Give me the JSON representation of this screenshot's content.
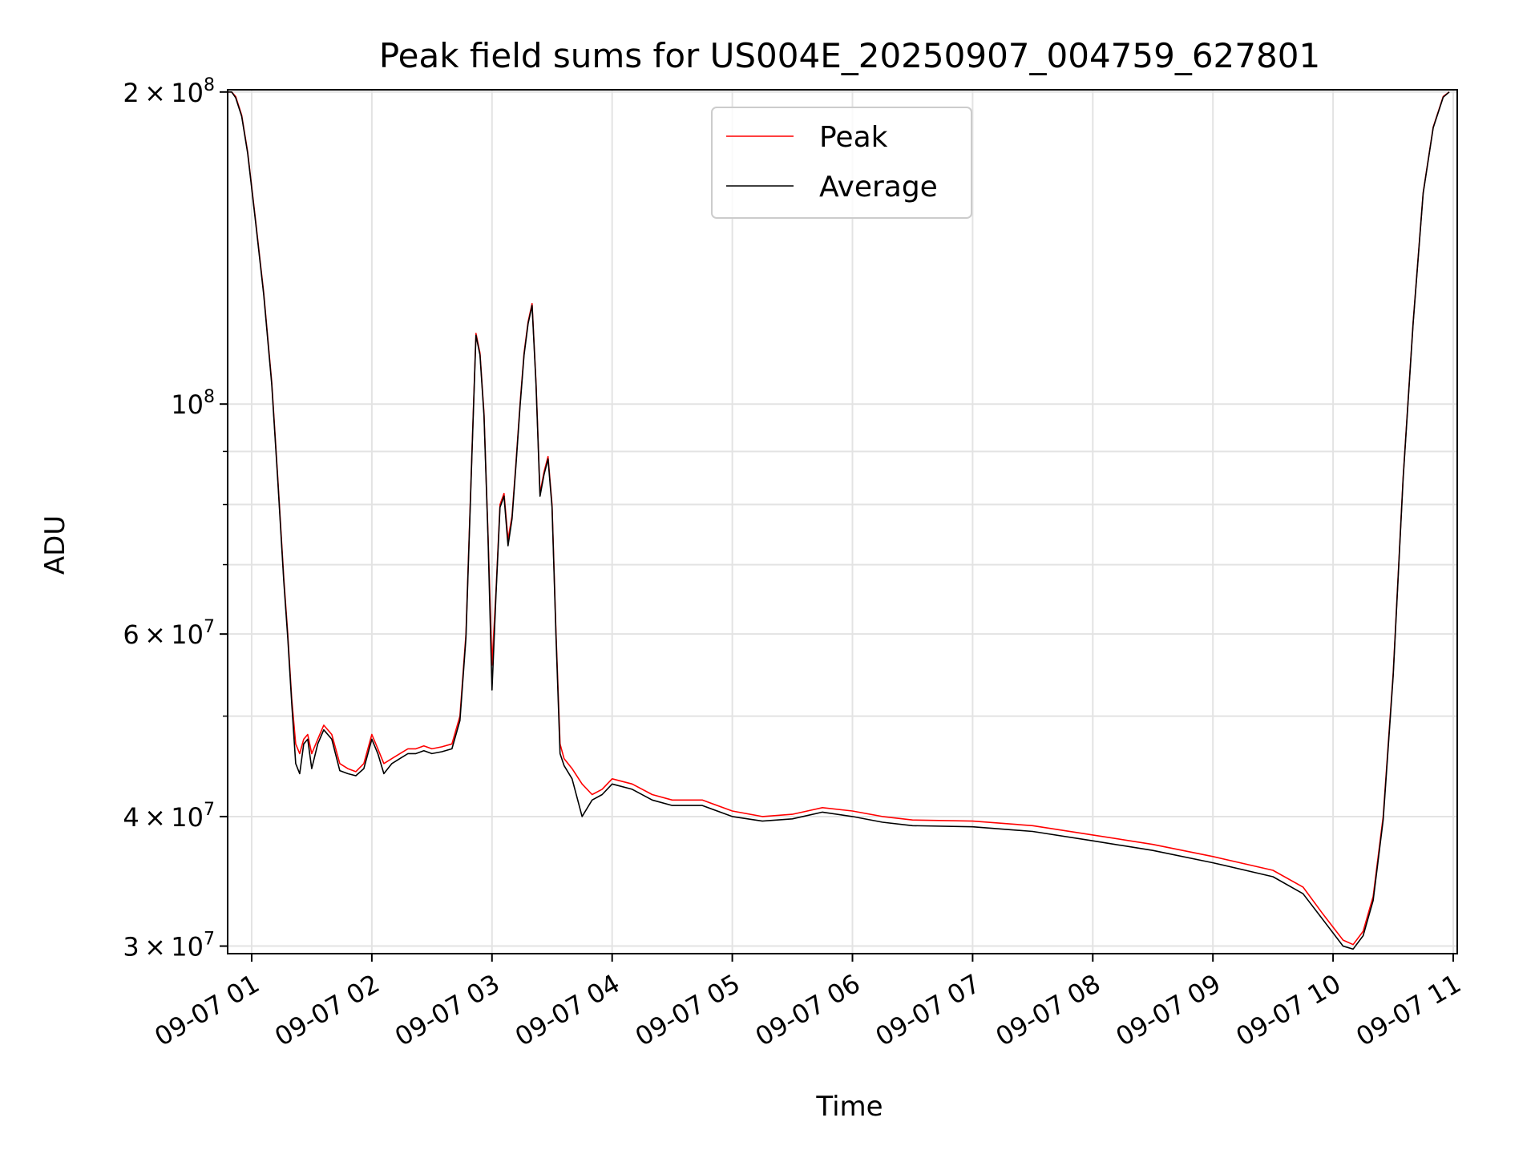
{
  "chart_data": {
    "type": "line",
    "title": "Peak field sums for US004E_20250907_004759_627801",
    "xlabel": "Time",
    "ylabel": "ADU",
    "yscale": "log",
    "ylim": [
      29500000,
      201000000
    ],
    "xlim": [
      "09-07 00:48",
      "09-07 11:02"
    ],
    "grid": true,
    "legend": "upper center",
    "x_ticks": [
      "09-07 01",
      "09-07 02",
      "09-07 03",
      "09-07 04",
      "09-07 05",
      "09-07 06",
      "09-07 07",
      "09-07 08",
      "09-07 09",
      "09-07 10",
      "09-07 11"
    ],
    "y_ticks": [
      {
        "value": 30000000,
        "mantissa": "3",
        "exp": "7"
      },
      {
        "value": 40000000,
        "mantissa": "4",
        "exp": "7"
      },
      {
        "value": 60000000,
        "mantissa": "6",
        "exp": "7"
      },
      {
        "value": 100000000,
        "mantissa": "",
        "exp": "8"
      },
      {
        "value": 200000000,
        "mantissa": "2",
        "exp": "8"
      }
    ],
    "y_minor": [
      50000000,
      70000000,
      80000000,
      90000000
    ],
    "series": [
      {
        "name": "Peak",
        "color": "#ff0000",
        "x": [
          "09-07 00:48",
          "09-07 00:50",
          "09-07 00:52",
          "09-07 00:55",
          "09-07 00:58",
          "09-07 01:02",
          "09-07 01:06",
          "09-07 01:10",
          "09-07 01:13",
          "09-07 01:16",
          "09-07 01:18",
          "09-07 01:20",
          "09-07 01:22",
          "09-07 01:24",
          "09-07 01:26",
          "09-07 01:28",
          "09-07 01:30",
          "09-07 01:33",
          "09-07 01:36",
          "09-07 01:40",
          "09-07 01:44",
          "09-07 01:48",
          "09-07 01:52",
          "09-07 01:56",
          "09-07 02:00",
          "09-07 02:03",
          "09-07 02:06",
          "09-07 02:10",
          "09-07 02:14",
          "09-07 02:18",
          "09-07 02:22",
          "09-07 02:26",
          "09-07 02:30",
          "09-07 02:35",
          "09-07 02:40",
          "09-07 02:44",
          "09-07 02:47",
          "09-07 02:50",
          "09-07 02:52",
          "09-07 02:54",
          "09-07 02:56",
          "09-07 02:58",
          "09-07 03:00",
          "09-07 03:02",
          "09-07 03:04",
          "09-07 03:06",
          "09-07 03:08",
          "09-07 03:10",
          "09-07 03:12",
          "09-07 03:14",
          "09-07 03:16",
          "09-07 03:18",
          "09-07 03:20",
          "09-07 03:22",
          "09-07 03:24",
          "09-07 03:26",
          "09-07 03:28",
          "09-07 03:30",
          "09-07 03:32",
          "09-07 03:34",
          "09-07 03:36",
          "09-07 03:40",
          "09-07 03:45",
          "09-07 03:50",
          "09-07 03:55",
          "09-07 04:00",
          "09-07 04:10",
          "09-07 04:20",
          "09-07 04:30",
          "09-07 04:45",
          "09-07 05:00",
          "09-07 05:15",
          "09-07 05:30",
          "09-07 05:45",
          "09-07 06:00",
          "09-07 06:15",
          "09-07 06:30",
          "09-07 07:00",
          "09-07 07:30",
          "09-07 08:00",
          "09-07 08:30",
          "09-07 09:00",
          "09-07 09:30",
          "09-07 09:45",
          "09-07 09:55",
          "09-07 10:05",
          "09-07 10:10",
          "09-07 10:15",
          "09-07 10:20",
          "09-07 10:25",
          "09-07 10:30",
          "09-07 10:35",
          "09-07 10:40",
          "09-07 10:45",
          "09-07 10:50",
          "09-07 10:55",
          "09-07 10:58"
        ],
        "y": [
          200000000,
          200000000,
          198000000,
          190000000,
          175000000,
          150000000,
          128000000,
          105000000,
          85000000,
          68000000,
          60000000,
          52000000,
          47000000,
          46000000,
          47500000,
          48000000,
          46000000,
          47500000,
          49000000,
          48000000,
          45000000,
          44500000,
          44200000,
          45000000,
          48000000,
          46500000,
          45000000,
          45500000,
          46000000,
          46500000,
          46500000,
          46800000,
          46500000,
          46700000,
          47000000,
          50000000,
          60000000,
          90000000,
          117000000,
          112000000,
          98000000,
          75000000,
          56000000,
          66000000,
          80000000,
          82000000,
          74000000,
          78000000,
          88000000,
          100000000,
          112000000,
          120000000,
          125000000,
          105000000,
          82000000,
          86000000,
          89000000,
          80000000,
          60000000,
          47000000,
          45500000,
          44500000,
          43000000,
          42000000,
          42500000,
          43500000,
          43000000,
          42000000,
          41500000,
          41500000,
          40500000,
          40000000,
          40200000,
          40800000,
          40500000,
          40000000,
          39700000,
          39600000,
          39200000,
          38400000,
          37600000,
          36600000,
          35500000,
          34200000,
          32200000,
          30400000,
          30100000,
          31000000,
          33500000,
          40000000,
          55000000,
          85000000,
          120000000,
          160000000,
          185000000,
          198000000,
          200000000
        ]
      },
      {
        "name": "Average",
        "color": "#000000",
        "x": [
          "09-07 00:48",
          "09-07 00:50",
          "09-07 00:52",
          "09-07 00:55",
          "09-07 00:58",
          "09-07 01:02",
          "09-07 01:06",
          "09-07 01:10",
          "09-07 01:13",
          "09-07 01:16",
          "09-07 01:18",
          "09-07 01:20",
          "09-07 01:22",
          "09-07 01:24",
          "09-07 01:26",
          "09-07 01:28",
          "09-07 01:30",
          "09-07 01:33",
          "09-07 01:36",
          "09-07 01:40",
          "09-07 01:44",
          "09-07 01:48",
          "09-07 01:52",
          "09-07 01:56",
          "09-07 02:00",
          "09-07 02:03",
          "09-07 02:06",
          "09-07 02:10",
          "09-07 02:14",
          "09-07 02:18",
          "09-07 02:22",
          "09-07 02:26",
          "09-07 02:30",
          "09-07 02:35",
          "09-07 02:40",
          "09-07 02:44",
          "09-07 02:47",
          "09-07 02:50",
          "09-07 02:52",
          "09-07 02:54",
          "09-07 02:56",
          "09-07 02:58",
          "09-07 03:00",
          "09-07 03:02",
          "09-07 03:04",
          "09-07 03:06",
          "09-07 03:08",
          "09-07 03:10",
          "09-07 03:12",
          "09-07 03:14",
          "09-07 03:16",
          "09-07 03:18",
          "09-07 03:20",
          "09-07 03:22",
          "09-07 03:24",
          "09-07 03:26",
          "09-07 03:28",
          "09-07 03:30",
          "09-07 03:32",
          "09-07 03:34",
          "09-07 03:36",
          "09-07 03:40",
          "09-07 03:45",
          "09-07 03:50",
          "09-07 03:55",
          "09-07 04:00",
          "09-07 04:10",
          "09-07 04:20",
          "09-07 04:30",
          "09-07 04:45",
          "09-07 05:00",
          "09-07 05:15",
          "09-07 05:30",
          "09-07 05:45",
          "09-07 06:00",
          "09-07 06:15",
          "09-07 06:30",
          "09-07 07:00",
          "09-07 07:30",
          "09-07 08:00",
          "09-07 08:30",
          "09-07 09:00",
          "09-07 09:30",
          "09-07 09:45",
          "09-07 09:55",
          "09-07 10:05",
          "09-07 10:10",
          "09-07 10:15",
          "09-07 10:20",
          "09-07 10:25",
          "09-07 10:30",
          "09-07 10:35",
          "09-07 10:40",
          "09-07 10:45",
          "09-07 10:50",
          "09-07 10:55",
          "09-07 10:58"
        ],
        "y": [
          200000000,
          200000000,
          197500000,
          189500000,
          174500000,
          149500000,
          127500000,
          104500000,
          84500000,
          67500000,
          59500000,
          51500000,
          45000000,
          44000000,
          47000000,
          47500000,
          44500000,
          47000000,
          48500000,
          47500000,
          44300000,
          44000000,
          43800000,
          44500000,
          47500000,
          46000000,
          44000000,
          45000000,
          45500000,
          46000000,
          46000000,
          46300000,
          46000000,
          46200000,
          46500000,
          49500000,
          59500000,
          89500000,
          116500000,
          111500000,
          97500000,
          74500000,
          53000000,
          65500000,
          79500000,
          81500000,
          73000000,
          77500000,
          87500000,
          99500000,
          111500000,
          119500000,
          124500000,
          104500000,
          81500000,
          85500000,
          88500000,
          79500000,
          59500000,
          46000000,
          44800000,
          43500000,
          40000000,
          41500000,
          42000000,
          43000000,
          42500000,
          41500000,
          41000000,
          41000000,
          40000000,
          39600000,
          39800000,
          40400000,
          40000000,
          39500000,
          39200000,
          39100000,
          38700000,
          37900000,
          37100000,
          36100000,
          35000000,
          33700000,
          31800000,
          30000000,
          29800000,
          30700000,
          33200000,
          39700000,
          54700000,
          84700000,
          119700000,
          159700000,
          184700000,
          197700000,
          200000000
        ]
      }
    ]
  }
}
